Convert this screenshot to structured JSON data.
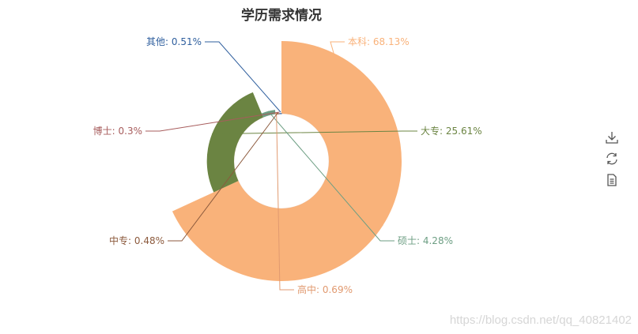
{
  "chart_data": {
    "type": "pie",
    "title": "学历需求情况",
    "rose_type": "radius",
    "legend": "none",
    "series": [
      {
        "name": "本科",
        "value": 68.13,
        "label": "本科: 68.13%",
        "color": "#f9b27a"
      },
      {
        "name": "大专",
        "value": 25.61,
        "label": "大专: 25.61%",
        "color": "#6b8442"
      },
      {
        "name": "硕士",
        "value": 4.28,
        "label": "硕士: 4.28%",
        "color": "#6d9e83"
      },
      {
        "name": "高中",
        "value": 0.69,
        "label": "高中: 0.69%",
        "color": "#e19a70"
      },
      {
        "name": "中专",
        "value": 0.48,
        "label": "中专: 0.48%",
        "color": "#8c5a3d"
      },
      {
        "name": "博士",
        "value": 0.3,
        "label": "博士: 0.3%",
        "color": "#a75c5c"
      },
      {
        "name": "其他",
        "value": 0.51,
        "label": "其他: 0.51%",
        "color": "#2f5f9e"
      }
    ]
  },
  "toolbox": {
    "icons": [
      "download-icon",
      "refresh-icon",
      "data-view-icon"
    ]
  },
  "watermark": "https://blog.csdn.net/qq_40821402"
}
